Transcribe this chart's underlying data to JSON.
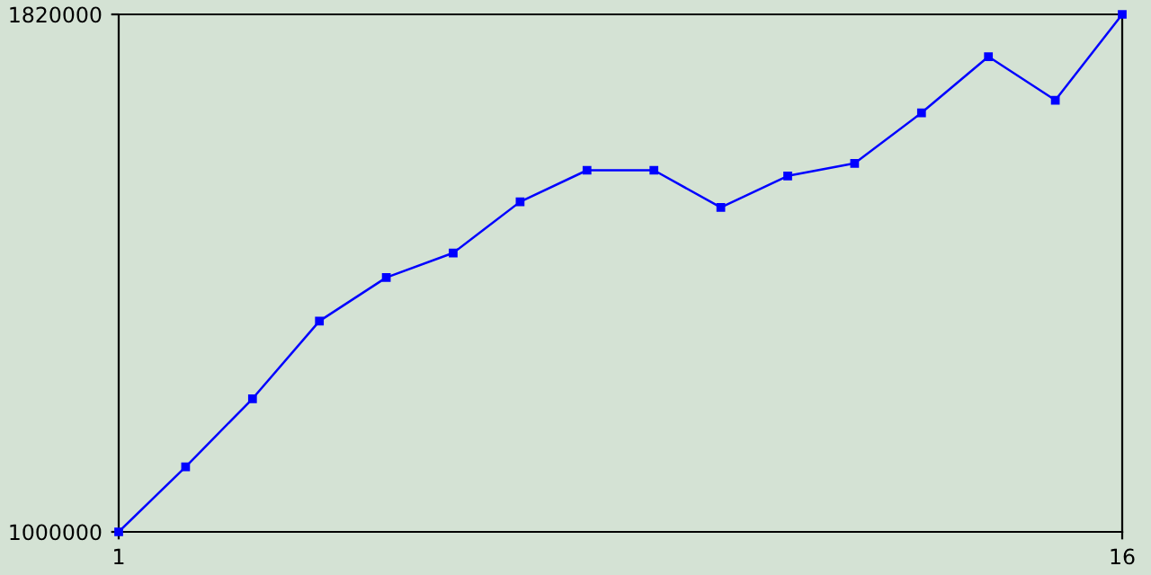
{
  "chart_data": {
    "type": "line",
    "x": [
      1,
      2,
      3,
      4,
      5,
      6,
      7,
      8,
      9,
      10,
      11,
      12,
      13,
      14,
      15,
      16
    ],
    "series": [
      {
        "color": "#0000ff",
        "values": [
          1000000,
          1103000,
          1211000,
          1334000,
          1403000,
          1442000,
          1523000,
          1573000,
          1573000,
          1514000,
          1564000,
          1584000,
          1664000,
          1753000,
          1684000,
          1820000
        ]
      }
    ],
    "xlim": [
      1,
      16
    ],
    "xticks": [
      1,
      16
    ],
    "ylim": [
      1000000,
      1820000
    ],
    "yticks": [
      1000000,
      1820000
    ],
    "grid": false,
    "marker": "square",
    "line_style": "solid"
  }
}
